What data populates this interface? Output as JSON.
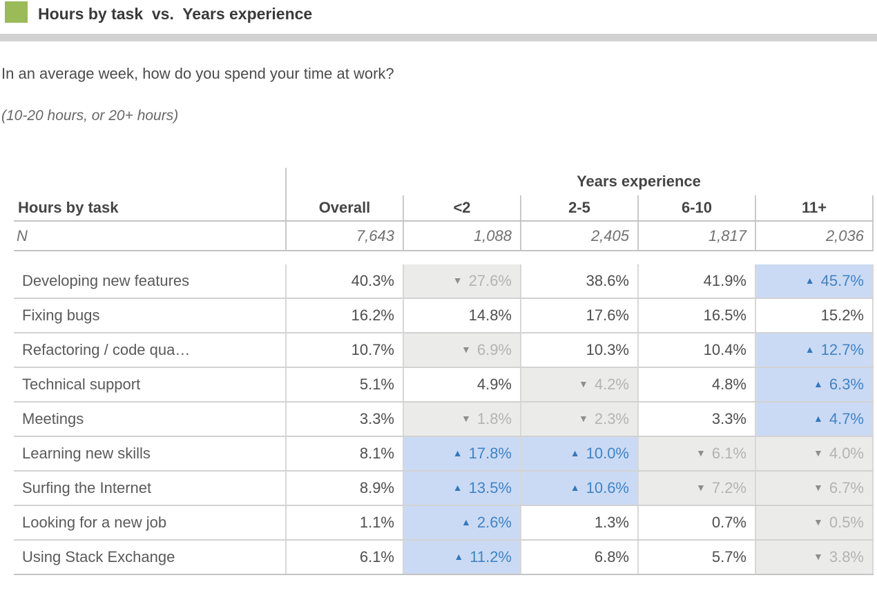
{
  "header": {
    "title": "Hours by task  vs.  Years experience"
  },
  "question": "In an average week, how do you spend your time at work?",
  "note": "(10-20 hours, or 20+ hours)",
  "icons": {
    "up_arrow": "▲",
    "down_arrow": "▼"
  },
  "colors": {
    "legend_green": "#9bba58",
    "header_bar_gray": "#d2d2d2",
    "up_cell_bg": "#cbdaf4",
    "up_cell_text": "#4183c3",
    "down_cell_bg": "#ebebe9",
    "down_cell_text": "#b3b3b1"
  },
  "table": {
    "group_header": "Years experience",
    "row_header": "Hours by task",
    "columns": [
      "Overall",
      "<2",
      "2-5",
      "6-10",
      "11+"
    ],
    "n_row": {
      "label": "N",
      "values": [
        "7,643",
        "1,088",
        "2,405",
        "1,817",
        "2,036"
      ]
    },
    "rows": [
      {
        "label": "Developing new features",
        "cells": [
          {
            "value": "40.3%",
            "state": "plain"
          },
          {
            "value": "27.6%",
            "state": "down"
          },
          {
            "value": "38.6%",
            "state": "plain"
          },
          {
            "value": "41.9%",
            "state": "plain"
          },
          {
            "value": "45.7%",
            "state": "up"
          }
        ]
      },
      {
        "label": "Fixing bugs",
        "cells": [
          {
            "value": "16.2%",
            "state": "plain"
          },
          {
            "value": "14.8%",
            "state": "plain"
          },
          {
            "value": "17.6%",
            "state": "plain"
          },
          {
            "value": "16.5%",
            "state": "plain"
          },
          {
            "value": "15.2%",
            "state": "plain"
          }
        ]
      },
      {
        "label": "Refactoring / code qua…",
        "cells": [
          {
            "value": "10.7%",
            "state": "plain"
          },
          {
            "value": "6.9%",
            "state": "down"
          },
          {
            "value": "10.3%",
            "state": "plain"
          },
          {
            "value": "10.4%",
            "state": "plain"
          },
          {
            "value": "12.7%",
            "state": "up"
          }
        ]
      },
      {
        "label": "Technical support",
        "cells": [
          {
            "value": "5.1%",
            "state": "plain"
          },
          {
            "value": "4.9%",
            "state": "plain"
          },
          {
            "value": "4.2%",
            "state": "down"
          },
          {
            "value": "4.8%",
            "state": "plain"
          },
          {
            "value": "6.3%",
            "state": "up"
          }
        ]
      },
      {
        "label": "Meetings",
        "cells": [
          {
            "value": "3.3%",
            "state": "plain"
          },
          {
            "value": "1.8%",
            "state": "down"
          },
          {
            "value": "2.3%",
            "state": "down"
          },
          {
            "value": "3.3%",
            "state": "plain"
          },
          {
            "value": "4.7%",
            "state": "up"
          }
        ]
      },
      {
        "label": "Learning new skills",
        "cells": [
          {
            "value": "8.1%",
            "state": "plain"
          },
          {
            "value": "17.8%",
            "state": "up"
          },
          {
            "value": "10.0%",
            "state": "up"
          },
          {
            "value": "6.1%",
            "state": "down"
          },
          {
            "value": "4.0%",
            "state": "down"
          }
        ]
      },
      {
        "label": "Surfing the Internet",
        "cells": [
          {
            "value": "8.9%",
            "state": "plain"
          },
          {
            "value": "13.5%",
            "state": "up"
          },
          {
            "value": "10.6%",
            "state": "up"
          },
          {
            "value": "7.2%",
            "state": "down"
          },
          {
            "value": "6.7%",
            "state": "down"
          }
        ]
      },
      {
        "label": "Looking for a new job",
        "cells": [
          {
            "value": "1.1%",
            "state": "plain"
          },
          {
            "value": "2.6%",
            "state": "up"
          },
          {
            "value": "1.3%",
            "state": "plain"
          },
          {
            "value": "0.7%",
            "state": "plain"
          },
          {
            "value": "0.5%",
            "state": "down"
          }
        ]
      },
      {
        "label": "Using Stack Exchange",
        "cells": [
          {
            "value": "6.1%",
            "state": "plain"
          },
          {
            "value": "11.2%",
            "state": "up"
          },
          {
            "value": "6.8%",
            "state": "plain"
          },
          {
            "value": "5.7%",
            "state": "plain"
          },
          {
            "value": "3.8%",
            "state": "down"
          }
        ]
      }
    ]
  },
  "chart_data": {
    "type": "table",
    "title": "Hours by task vs. Years experience",
    "question": "In an average week, how do you spend your time at work?",
    "note": "(10-20 hours, or 20+ hours)",
    "column_group_label": "Years experience",
    "columns": [
      "Overall",
      "<2",
      "2-5",
      "6-10",
      "11+"
    ],
    "n": [
      7643,
      1088,
      2405,
      1817,
      2036
    ],
    "rows": [
      {
        "label": "Developing new features",
        "values": [
          40.3,
          27.6,
          38.6,
          41.9,
          45.7
        ],
        "flags": [
          "",
          "down",
          "",
          "",
          "up"
        ]
      },
      {
        "label": "Fixing bugs",
        "values": [
          16.2,
          14.8,
          17.6,
          16.5,
          15.2
        ],
        "flags": [
          "",
          "",
          "",
          "",
          ""
        ]
      },
      {
        "label": "Refactoring / code qua…",
        "values": [
          10.7,
          6.9,
          10.3,
          10.4,
          12.7
        ],
        "flags": [
          "",
          "down",
          "",
          "",
          "up"
        ]
      },
      {
        "label": "Technical support",
        "values": [
          5.1,
          4.9,
          4.2,
          4.8,
          6.3
        ],
        "flags": [
          "",
          "",
          "down",
          "",
          "up"
        ]
      },
      {
        "label": "Meetings",
        "values": [
          3.3,
          1.8,
          2.3,
          3.3,
          4.7
        ],
        "flags": [
          "",
          "down",
          "down",
          "",
          "up"
        ]
      },
      {
        "label": "Learning new skills",
        "values": [
          8.1,
          17.8,
          10.0,
          6.1,
          4.0
        ],
        "flags": [
          "",
          "up",
          "up",
          "down",
          "down"
        ]
      },
      {
        "label": "Surfing the Internet",
        "values": [
          8.9,
          13.5,
          10.6,
          7.2,
          6.7
        ],
        "flags": [
          "",
          "up",
          "up",
          "down",
          "down"
        ]
      },
      {
        "label": "Looking for a new job",
        "values": [
          1.1,
          2.6,
          1.3,
          0.7,
          0.5
        ],
        "flags": [
          "",
          "up",
          "",
          "",
          "down"
        ]
      },
      {
        "label": "Using Stack Exchange",
        "values": [
          6.1,
          11.2,
          6.8,
          5.7,
          3.8
        ],
        "flags": [
          "",
          "up",
          "",
          "",
          "down"
        ]
      }
    ]
  }
}
